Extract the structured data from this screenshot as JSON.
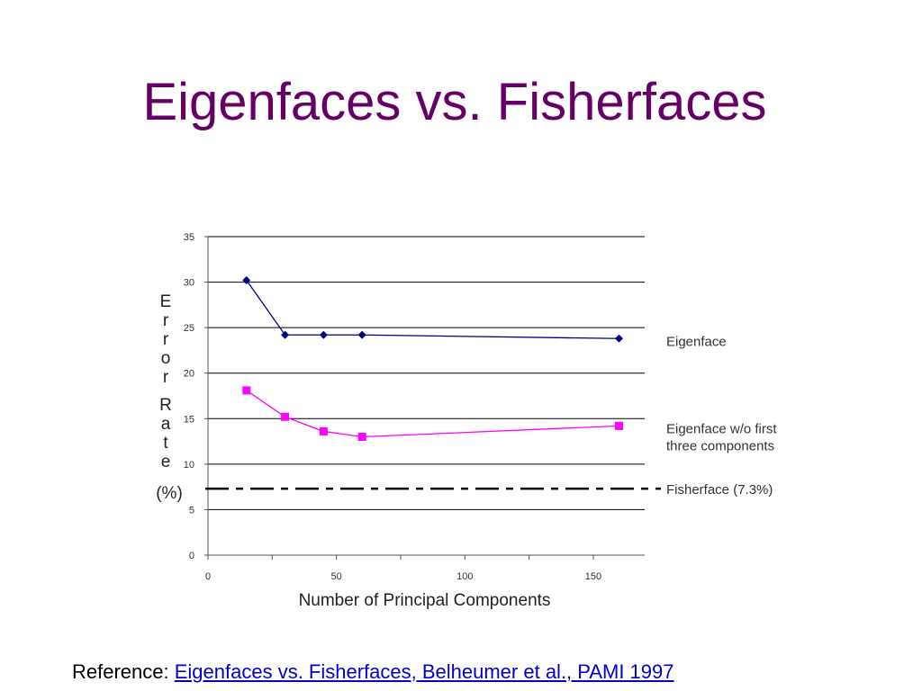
{
  "slide": {
    "title": "Eigenfaces vs. Fisherfaces",
    "reference_prefix": "Reference: ",
    "reference_link": "Eigenfaces vs. Fisherfaces, Belheumer et al., PAMI 1997"
  },
  "chart_data": {
    "type": "line",
    "xlabel": "Number of Principal Components",
    "ylabel": "Error Rate (%)",
    "xlim": [
      0,
      170
    ],
    "ylim": [
      0,
      35
    ],
    "xticks": [
      0,
      50,
      100,
      150
    ],
    "yticks": [
      0,
      5,
      10,
      15,
      20,
      25,
      30,
      35
    ],
    "grid": "horizontal",
    "series": [
      {
        "name": "Eigenface",
        "color": "#000080",
        "marker": "diamond",
        "x": [
          15,
          30,
          45,
          60,
          160
        ],
        "y": [
          30.2,
          24.2,
          24.2,
          24.2,
          23.8
        ]
      },
      {
        "name": "Eigenface w/o first three components",
        "label_lines": [
          "Eigenface w/o first",
          "three components"
        ],
        "color": "#ff00ff",
        "marker": "square",
        "x": [
          15,
          30,
          45,
          60,
          160
        ],
        "y": [
          18.1,
          15.2,
          13.6,
          13.0,
          14.2
        ]
      }
    ],
    "reference_lines": [
      {
        "name": "Fisherface (7.3%)",
        "y": 7.3,
        "style": "dash-dot",
        "color": "#000000"
      }
    ]
  }
}
